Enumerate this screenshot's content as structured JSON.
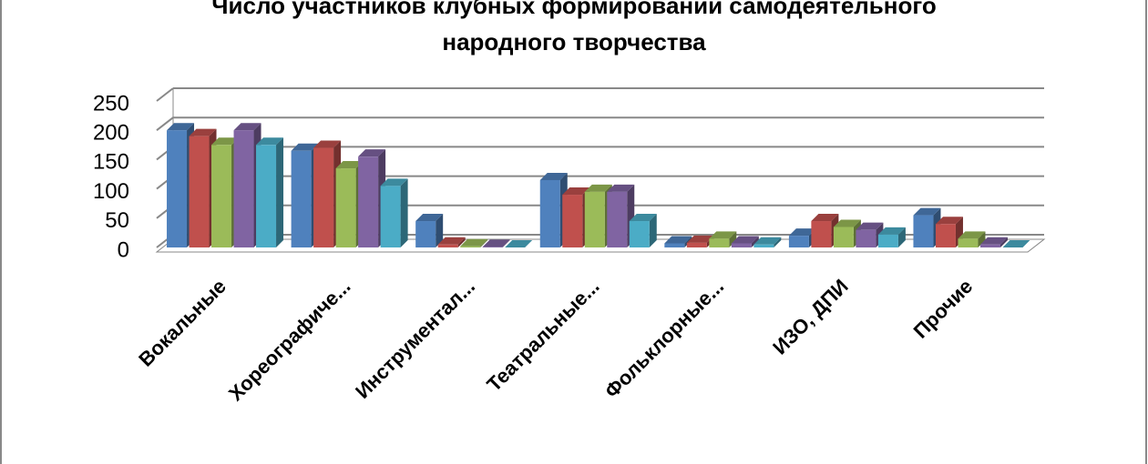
{
  "chart_data": {
    "type": "bar3d",
    "title": "Число участников клубных формирований самодеятельного народного творчества",
    "categories": [
      "Вокальные",
      "Хореографиче...",
      "Инструментал...",
      "Театральные...",
      "Фольклорные...",
      "ИЗО, ДПИ",
      "Прочие"
    ],
    "series": [
      {
        "color": "#4f81bd",
        "values": [
          200,
          165,
          45,
          115,
          7,
          20,
          55
        ]
      },
      {
        "color": "#c0504d",
        "values": [
          190,
          170,
          5,
          90,
          8,
          45,
          40
        ]
      },
      {
        "color": "#9bbb59",
        "values": [
          175,
          135,
          2,
          95,
          15,
          35,
          15
        ]
      },
      {
        "color": "#8064a2",
        "values": [
          200,
          155,
          1,
          95,
          7,
          30,
          5
        ]
      },
      {
        "color": "#4bacc6",
        "values": [
          175,
          105,
          0,
          45,
          5,
          22,
          0
        ]
      }
    ],
    "ylim": [
      0,
      250
    ],
    "yticks": [
      0,
      50,
      100,
      150,
      200,
      250
    ],
    "grid": true
  }
}
